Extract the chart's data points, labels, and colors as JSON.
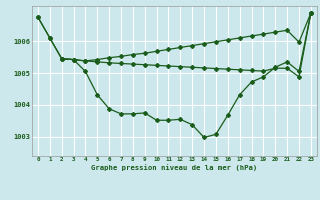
{
  "title": "Graphe pression niveau de la mer (hPa)",
  "background_color": "#cce8ec",
  "grid_color": "#ffffff",
  "line_color": "#1a5c1a",
  "xlim": [
    -0.5,
    23.5
  ],
  "ylim": [
    1002.4,
    1007.1
  ],
  "yticks": [
    1003,
    1004,
    1005,
    1006
  ],
  "xticks": [
    0,
    1,
    2,
    3,
    4,
    5,
    6,
    7,
    8,
    9,
    10,
    11,
    12,
    13,
    14,
    15,
    16,
    17,
    18,
    19,
    20,
    21,
    22,
    23
  ],
  "series1_x": [
    0,
    1,
    2,
    3,
    4,
    5,
    6,
    7,
    8,
    9,
    10,
    11,
    12,
    13,
    14,
    15,
    16,
    17,
    18,
    19,
    20,
    21,
    22,
    23
  ],
  "series1_y": [
    1006.75,
    1006.1,
    1005.45,
    1005.42,
    1005.38,
    1005.42,
    1005.48,
    1005.52,
    1005.58,
    1005.62,
    1005.68,
    1005.74,
    1005.8,
    1005.86,
    1005.92,
    1005.98,
    1006.04,
    1006.1,
    1006.16,
    1006.22,
    1006.28,
    1006.34,
    1005.97,
    1006.88
  ],
  "series2_x": [
    0,
    1,
    2,
    3,
    4,
    5,
    6,
    7,
    8,
    9,
    10,
    11,
    12,
    13,
    14,
    15,
    16,
    17,
    18,
    19,
    20,
    21,
    22,
    23
  ],
  "series2_y": [
    1006.75,
    1006.1,
    1005.45,
    1005.42,
    1005.05,
    1004.32,
    1003.88,
    1003.72,
    1003.72,
    1003.75,
    1003.52,
    1003.52,
    1003.55,
    1003.38,
    1002.98,
    1003.08,
    1003.68,
    1004.32,
    1004.72,
    1004.88,
    1005.18,
    1005.35,
    1005.05,
    1006.88
  ],
  "series3_x": [
    2,
    3,
    4,
    5,
    6,
    7,
    8,
    9,
    10,
    11,
    12,
    13,
    14,
    15,
    16,
    17,
    18,
    19,
    20,
    21,
    22,
    23
  ],
  "series3_y": [
    1005.45,
    1005.42,
    1005.38,
    1005.35,
    1005.32,
    1005.3,
    1005.28,
    1005.26,
    1005.24,
    1005.22,
    1005.2,
    1005.18,
    1005.16,
    1005.14,
    1005.12,
    1005.1,
    1005.08,
    1005.06,
    1005.15,
    1005.15,
    1004.88,
    1006.88
  ]
}
